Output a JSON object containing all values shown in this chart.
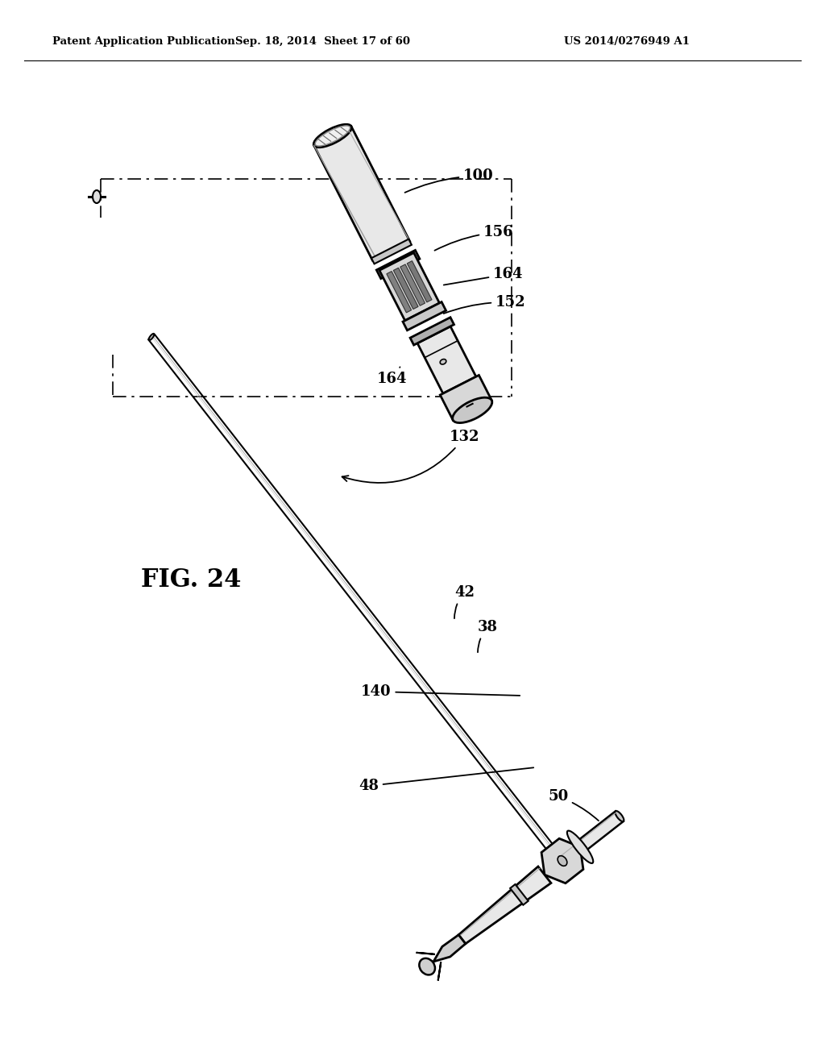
{
  "background_color": "#ffffff",
  "header_left": "Patent Application Publication",
  "header_center": "Sep. 18, 2014  Sheet 17 of 60",
  "header_right": "US 2014/0276949 A1",
  "figure_label": "FIG. 24",
  "line_color": "#000000",
  "shade_light": "#e8e8e8",
  "shade_mid": "#c8c8c8",
  "shade_dark": "#909090"
}
